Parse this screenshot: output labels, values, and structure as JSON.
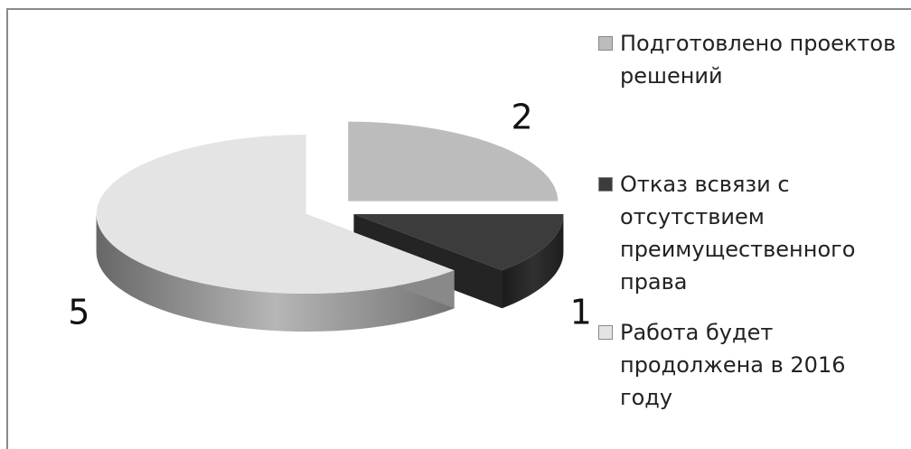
{
  "chart_data": {
    "type": "pie",
    "categories": [
      "Подготовлено проектов решений",
      "Отказ всвязи с отсутствием преимущественного права",
      "Работа будет продолжена в 2016 году"
    ],
    "values": [
      2,
      1,
      5
    ],
    "colors": [
      "#bcbcbc",
      "#3c3c3c",
      "#e4e4e4"
    ]
  }
}
